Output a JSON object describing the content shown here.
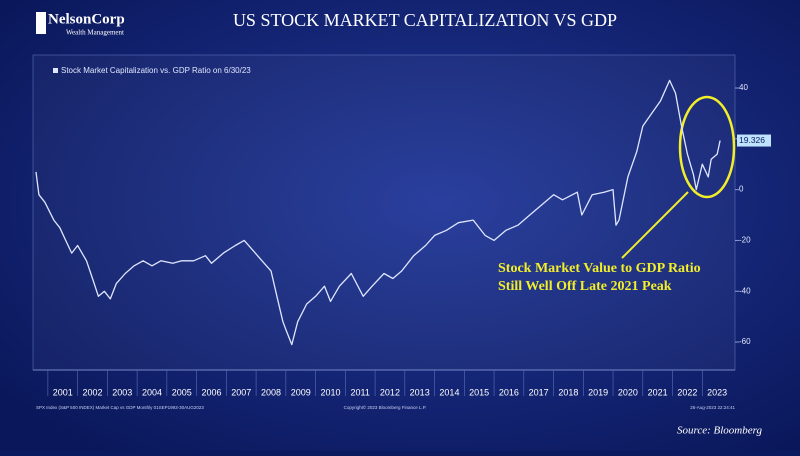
{
  "chart_data": {
    "type": "line",
    "title": "US STOCK MARKET CAPITALIZATION VS GDP",
    "logo": {
      "name": "NelsonCorp",
      "tagline": "Wealth Management"
    },
    "annotation": [
      "Stock Market Value to GDP Ratio",
      "Still Well Off Late 2021 Peak"
    ],
    "source": "Source: Bloomberg",
    "footnotes": [
      "SPX Index (S&P 500 INDEX) Market Cap vs GDP  Monthly 01SEP1993-30AUG2023",
      "Copyright© 2023 Bloomberg Finance L.P.",
      "25-Aug-2023 22:24:41"
    ],
    "x": [
      2000.6,
      2000.7,
      2000.9,
      2001.2,
      2001.4,
      2001.6,
      2001.8,
      2002.0,
      2002.3,
      2002.5,
      2002.7,
      2002.9,
      2003.1,
      2003.3,
      2003.6,
      2003.9,
      2004.2,
      2004.5,
      2004.8,
      2005.2,
      2005.5,
      2005.9,
      2006.3,
      2006.5,
      2006.9,
      2007.3,
      2007.6,
      2007.9,
      2008.2,
      2008.5,
      2008.7,
      2008.9,
      2009.0,
      2009.2,
      2009.4,
      2009.7,
      2010.0,
      2010.3,
      2010.5,
      2010.8,
      2011.2,
      2011.6,
      2011.9,
      2012.3,
      2012.6,
      2012.9,
      2013.3,
      2013.7,
      2014.0,
      2014.4,
      2014.8,
      2015.3,
      2015.7,
      2016.0,
      2016.4,
      2016.8,
      2017.2,
      2017.6,
      2018.0,
      2018.3,
      2018.8,
      2018.95,
      2019.3,
      2019.7,
      2020.0,
      2020.1,
      2020.2,
      2020.5,
      2020.8,
      2021.0,
      2021.3,
      2021.6,
      2021.9,
      2022.1,
      2022.3,
      2022.5,
      2022.7,
      2022.8,
      2023.0,
      2023.2,
      2023.3,
      2023.5,
      2023.6
    ],
    "series": [
      {
        "name": "Stock Market Capitalization vs. GDP Ratio on 6/30/23",
        "color": "#dfe6ff",
        "values": [
          7,
          -2,
          -5,
          -12,
          -15,
          -20,
          -25,
          -22,
          -28,
          -35,
          -42,
          -40,
          -43,
          -37,
          -33,
          -30,
          -28,
          -30,
          -28,
          -29,
          -28,
          -28,
          -26,
          -29,
          -25,
          -22,
          -20,
          -24,
          -28,
          -32,
          -42,
          -52,
          -55,
          -61,
          -52,
          -45,
          -42,
          -38,
          -44,
          -38,
          -33,
          -42,
          -38,
          -33,
          -35,
          -32,
          -26,
          -22,
          -18,
          -16,
          -13,
          -12,
          -18,
          -20,
          -16,
          -14,
          -10,
          -6,
          -2,
          -4,
          -1,
          -10,
          -2,
          -1,
          0,
          -14,
          -12,
          5,
          15,
          25,
          30,
          35,
          43,
          38,
          25,
          14,
          6,
          0,
          10,
          5,
          12,
          14,
          19.326
        ]
      }
    ],
    "xlim": [
      2000.5,
      2024.1
    ],
    "xticks": [
      2001,
      2002,
      2003,
      2004,
      2005,
      2006,
      2007,
      2008,
      2009,
      2010,
      2011,
      2012,
      2013,
      2014,
      2015,
      2016,
      2017,
      2018,
      2019,
      2020,
      2021,
      2022,
      2023
    ],
    "ylim": [
      -71,
      53
    ],
    "yticks": [
      40,
      20,
      0,
      -20,
      -40,
      -60
    ]
  }
}
